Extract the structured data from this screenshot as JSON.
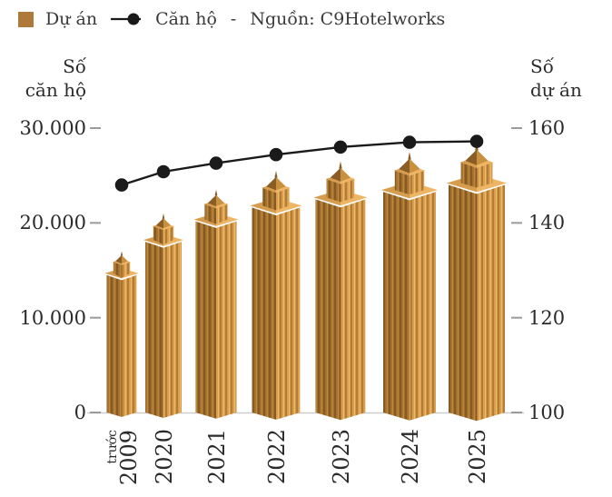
{
  "legend": {
    "bar_series_label": "Dự án",
    "line_series_label": "Căn hộ",
    "separator": "-",
    "source": "Nguồn: C9Hotelworks"
  },
  "y_left_title": {
    "line1": "Số",
    "line2": "căn hộ"
  },
  "y_right_title": {
    "line1": "Số",
    "line2": "dự án"
  },
  "chart_data": {
    "type": "bar",
    "subtype": "pictorial-building-bars-with-line-overlay",
    "title": "",
    "source": "Nguồn: C9Hotelworks",
    "categories": [
      "trước 2009",
      "2020",
      "2021",
      "2022",
      "2023",
      "2024",
      "2025"
    ],
    "series": [
      {
        "name": "Dự án",
        "type": "bar",
        "axis": "right",
        "values": [
          134,
          142,
          147,
          151,
          153,
          155,
          157
        ]
      },
      {
        "name": "Căn hộ",
        "type": "line",
        "axis": "left",
        "values": [
          24000,
          25400,
          26300,
          27200,
          28000,
          28500,
          28600
        ]
      }
    ],
    "y_left": {
      "title": "Số căn hộ",
      "ticks": [
        "30.000",
        "20.000",
        "10.000",
        "0"
      ],
      "tick_values": [
        30000,
        20000,
        10000,
        0
      ],
      "range": [
        0,
        30000
      ]
    },
    "y_right": {
      "title": "Số dự án",
      "ticks": [
        "160",
        "140",
        "120",
        "100"
      ],
      "tick_values": [
        160,
        140,
        120,
        100
      ],
      "range": [
        100,
        160
      ]
    },
    "grid": false,
    "legend_position": "top-left",
    "colors": {
      "bar_swatch": "#b0793c",
      "line": "#1a1a1a",
      "building_face_light": "#cf944a",
      "building_face_dark": "#9c6a2b",
      "building_roof": "#e3a955",
      "axis_line": "#cdcdcd",
      "tick_dash": "#9a9a9a",
      "text": "#2b2b2b"
    }
  }
}
